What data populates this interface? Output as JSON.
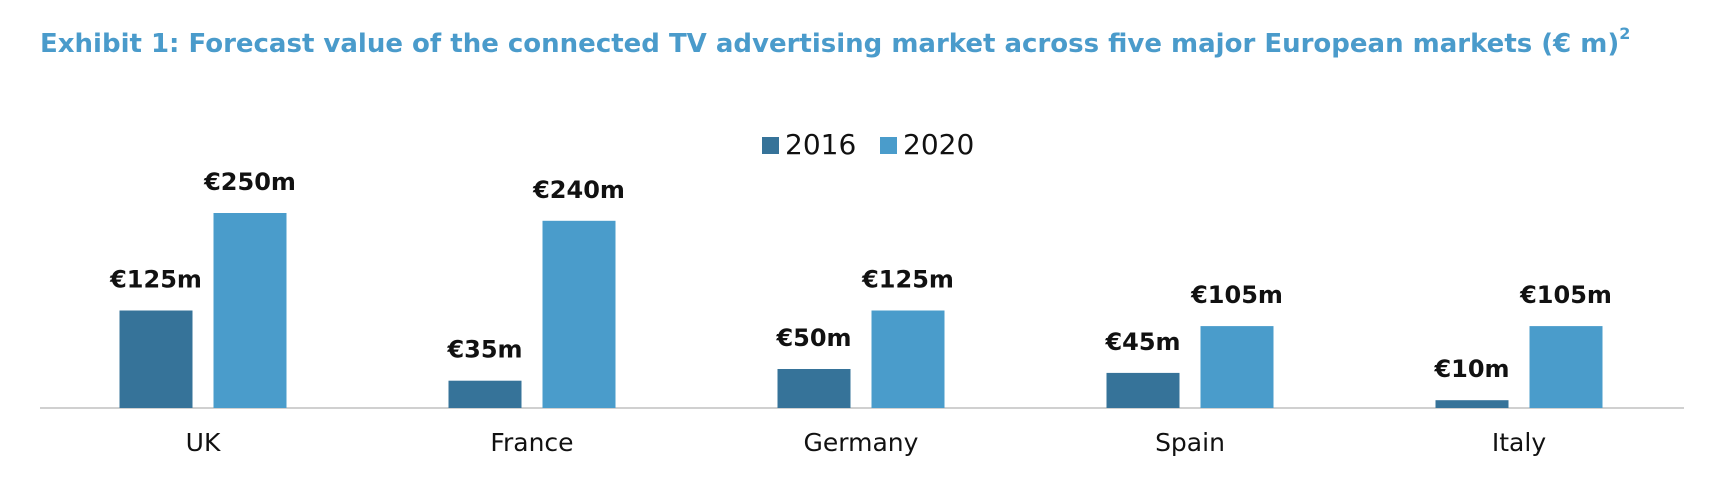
{
  "chart_data": {
    "type": "bar",
    "title": "Exhibit 1: Forecast value of the connected TV advertising market across five major European markets (€ m)",
    "title_superscript": "2",
    "categories": [
      "UK",
      "France",
      "Germany",
      "Spain",
      "Italy"
    ],
    "series": [
      {
        "name": "2016",
        "color": "#367399",
        "values": [
          125,
          35,
          50,
          45,
          10
        ],
        "value_labels": [
          "€125m",
          "€35m",
          "€50m",
          "€45m",
          "€10m"
        ]
      },
      {
        "name": "2020",
        "color": "#4a9ccb",
        "values": [
          250,
          240,
          125,
          105,
          105
        ],
        "value_labels": [
          "€250m",
          "€240m",
          "€125m",
          "€105m",
          "€105m"
        ]
      }
    ],
    "legend": "top"
  }
}
